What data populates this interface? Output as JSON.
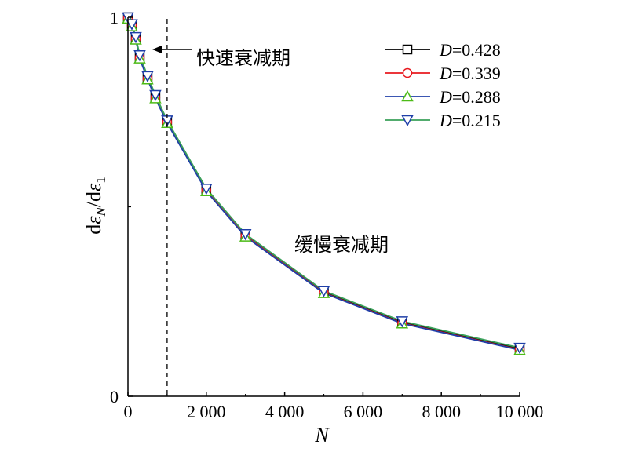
{
  "chart_data": {
    "type": "line",
    "title": "",
    "xlabel": "N",
    "ylabel_parts": {
      "d1": "d",
      "eps1": "ε",
      "sub1": "N",
      "slash": "/d",
      "eps2": "ε",
      "sub2": "1"
    },
    "x_ticks": [
      "0",
      "2 000",
      "4 000",
      "6 000",
      "8 000",
      "10 000"
    ],
    "y_ticks": [
      "0",
      "1"
    ],
    "xlim": [
      0,
      10000
    ],
    "ylim": [
      0,
      1
    ],
    "grid": false,
    "legend_position": "top-right",
    "x": [
      0,
      100,
      200,
      300,
      500,
      700,
      1000,
      2000,
      3000,
      5000,
      7000,
      10000
    ],
    "series": [
      {
        "name_var": "D",
        "name_val": "=0.428",
        "color": "#000000",
        "marker": "square",
        "values": [
          1.0,
          0.98,
          0.945,
          0.895,
          0.84,
          0.79,
          0.725,
          0.545,
          0.425,
          0.275,
          0.195,
          0.125
        ]
      },
      {
        "name_var": "D",
        "name_val": "=0.339",
        "color": "#e8191f",
        "marker": "circle",
        "values": [
          0.998,
          0.978,
          0.943,
          0.893,
          0.838,
          0.788,
          0.723,
          0.543,
          0.423,
          0.273,
          0.193,
          0.123
        ]
      },
      {
        "name_var": "D",
        "name_val": "=0.288",
        "color": "#1f3fa8",
        "marker": "triangle-up",
        "values": [
          0.996,
          0.976,
          0.941,
          0.891,
          0.836,
          0.786,
          0.721,
          0.541,
          0.421,
          0.272,
          0.192,
          0.122
        ]
      },
      {
        "name_var": "D",
        "name_val": "=0.215",
        "color": "#3aa05a",
        "marker": "triangle-down",
        "values": [
          1.0,
          0.982,
          0.948,
          0.9,
          0.845,
          0.795,
          0.728,
          0.548,
          0.428,
          0.278,
          0.198,
          0.128
        ]
      }
    ],
    "marker_colors": {
      "square": "#000000",
      "circle": "#e8191f",
      "triangle-up": "#4cbb17",
      "triangle-down": "#1f3fa8"
    },
    "divider_x": 1000,
    "annotations": {
      "fast": "快速衰减期",
      "slow": "缓慢衰减期"
    }
  }
}
